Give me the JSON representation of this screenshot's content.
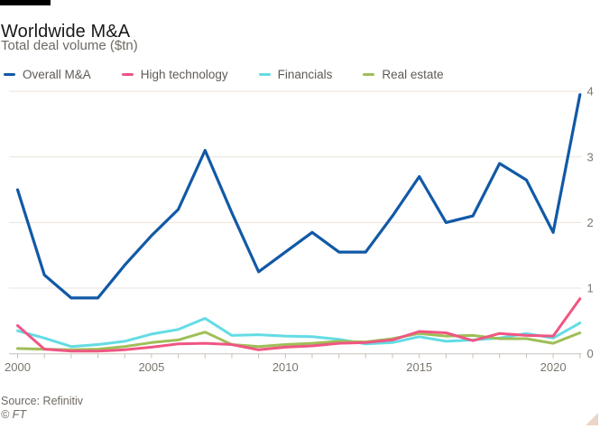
{
  "chart_data": {
    "type": "line",
    "title": "Worldwide M&A",
    "subtitle": "Total deal volume ($tn)",
    "x": [
      2000,
      2001,
      2002,
      2003,
      2004,
      2005,
      2006,
      2007,
      2008,
      2009,
      2010,
      2011,
      2012,
      2013,
      2014,
      2015,
      2016,
      2017,
      2018,
      2019,
      2020,
      2021
    ],
    "x_labeled_ticks": [
      2000,
      2005,
      2010,
      2015,
      2020
    ],
    "x_tick_interval_years": 1,
    "ylim": [
      0,
      4
    ],
    "yticks": [
      0,
      1,
      2,
      3,
      4
    ],
    "y_axis_side": "right",
    "grid": "horizontal",
    "series": [
      {
        "name": "Overall M&A",
        "color": "#1159a6",
        "values": [
          2.5,
          1.2,
          0.85,
          0.85,
          1.35,
          1.8,
          2.2,
          3.1,
          2.15,
          1.25,
          1.55,
          1.85,
          1.55,
          1.55,
          2.1,
          2.7,
          2.0,
          2.1,
          2.9,
          2.65,
          1.85,
          3.95
        ]
      },
      {
        "name": "High technology",
        "color": "#f05683",
        "values": [
          0.43,
          0.07,
          0.04,
          0.04,
          0.06,
          0.1,
          0.15,
          0.16,
          0.14,
          0.06,
          0.1,
          0.12,
          0.16,
          0.17,
          0.21,
          0.34,
          0.32,
          0.2,
          0.31,
          0.28,
          0.27,
          0.84
        ]
      },
      {
        "name": "Financials",
        "color": "#63dce4",
        "values": [
          0.35,
          0.24,
          0.11,
          0.14,
          0.19,
          0.3,
          0.37,
          0.54,
          0.28,
          0.29,
          0.27,
          0.26,
          0.22,
          0.15,
          0.17,
          0.26,
          0.19,
          0.21,
          0.24,
          0.31,
          0.24,
          0.47
        ]
      },
      {
        "name": "Real estate",
        "color": "#9fbe57",
        "values": [
          0.08,
          0.07,
          0.06,
          0.07,
          0.11,
          0.17,
          0.21,
          0.33,
          0.14,
          0.11,
          0.14,
          0.16,
          0.19,
          0.18,
          0.23,
          0.31,
          0.27,
          0.28,
          0.23,
          0.23,
          0.16,
          0.32
        ]
      }
    ]
  },
  "footer": {
    "source": "Source: Refinitiv",
    "copyright": "© FT"
  },
  "decorations": {
    "top_bar_color": "#000000",
    "resize_triangle_color": "#e9d6c8"
  }
}
